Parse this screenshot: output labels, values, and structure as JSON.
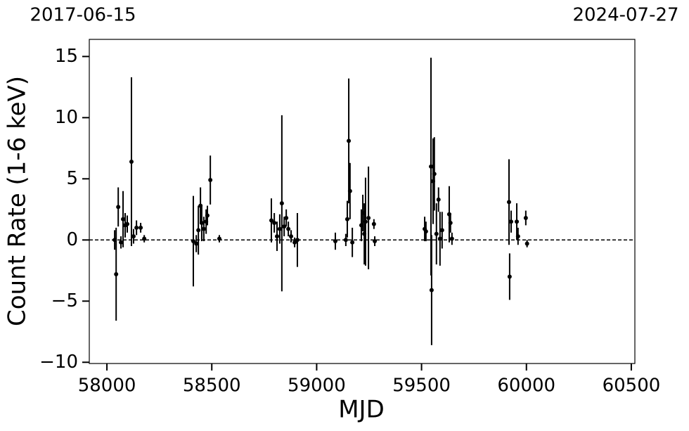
{
  "chart_data": {
    "type": "scatter",
    "xlabel": "MJD",
    "ylabel": "Count Rate (1-6 keV)",
    "annotations": [
      "2017-06-15",
      "2024-07-27"
    ],
    "hline": 0,
    "color": "#000000",
    "x": [
      58037,
      58044,
      58054,
      58067,
      58077,
      58087,
      58097,
      58117,
      58127,
      58141,
      58161,
      58178,
      58412,
      58426,
      58436,
      58446,
      58452,
      58462,
      58473,
      58479,
      58493,
      58536,
      58784,
      58798,
      58811,
      58824,
      58834,
      58845,
      58855,
      58865,
      58878,
      58895,
      58908,
      59089,
      59139,
      59146,
      59153,
      59159,
      59170,
      59213,
      59220,
      59227,
      59233,
      59247,
      59273,
      59277,
      59515,
      59521,
      59545,
      59548,
      59555,
      59561,
      59571,
      59581,
      59588,
      59598,
      59632,
      59638,
      59645,
      59917,
      59920,
      59927,
      59954,
      59960,
      59997,
      60003
    ],
    "values": [
      0,
      -2.8,
      2.7,
      -0.2,
      1.7,
      1.2,
      1.3,
      6.4,
      0.3,
      1.0,
      1.0,
      0.1,
      -0.1,
      -0.3,
      0.8,
      2.8,
      1.4,
      0.9,
      1.5,
      2.0,
      4.9,
      0.1,
      1.6,
      1.4,
      0.3,
      0.9,
      3.0,
      1.1,
      1.8,
      0.9,
      0.3,
      -0.2,
      0.0,
      -0.1,
      0.0,
      1.7,
      8.1,
      4.0,
      -0.2,
      1.2,
      2.2,
      0.5,
      1.5,
      1.8,
      1.3,
      -0.1,
      0.9,
      0.7,
      6.0,
      -4.1,
      4.8,
      5.4,
      0.5,
      3.3,
      0.1,
      0.8,
      2.1,
      1.4,
      0.1,
      3.1,
      -3.0,
      1.5,
      1.5,
      0.3,
      1.8,
      -0.3
    ],
    "errors": [
      0.8,
      3.8,
      1.6,
      0.5,
      2.3,
      1.0,
      0.7,
      6.9,
      0.6,
      0.6,
      0.4,
      0.3,
      3.7,
      0.7,
      2.0,
      1.5,
      1.5,
      1.0,
      1.0,
      0.8,
      2.0,
      0.3,
      1.8,
      0.8,
      1.2,
      1.2,
      7.2,
      0.8,
      0.7,
      0.6,
      0.5,
      0.4,
      2.2,
      0.7,
      0.5,
      1.5,
      5.1,
      2.3,
      1.2,
      1.3,
      1.5,
      2.5,
      3.6,
      4.2,
      0.4,
      0.4,
      1.0,
      0.8,
      8.9,
      4.5,
      3.5,
      3.0,
      2.5,
      1.0,
      2.2,
      1.5,
      2.3,
      0.8,
      0.5,
      3.5,
      1.9,
      0.9,
      1.5,
      0.7,
      0.6,
      0.3
    ],
    "xlim": [
      57916,
      60517
    ],
    "ylim": [
      -10.1,
      16.4
    ],
    "xticks": [
      58000,
      58500,
      59000,
      59500,
      60000,
      60500
    ],
    "yticks": [
      {
        "value": -10,
        "label": "−10"
      },
      {
        "value": -5,
        "label": "−5"
      },
      0,
      5,
      10,
      15
    ]
  }
}
